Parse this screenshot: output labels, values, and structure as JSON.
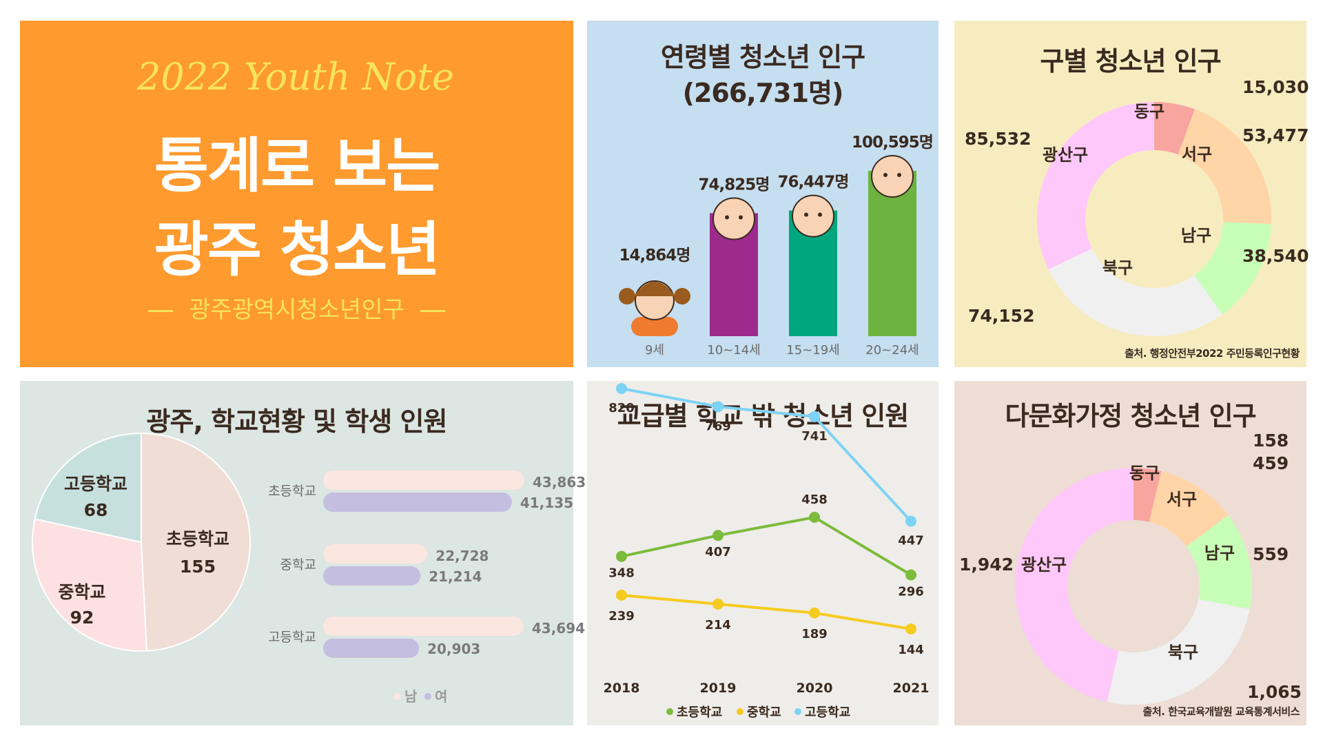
{
  "title_panel": {
    "kicker": "2022 Youth Note",
    "title_line1": "통계로 보는",
    "title_line2": "광주 청소년",
    "subtitle": "광주광역시청소년인구",
    "bg_color": "#FF9A2E",
    "kicker_color": "#F5E45C"
  },
  "source_population": "출처. 행정안전부2022 주민등록인구현황",
  "source_school": "출처. 한국교육개발원 교육통계서비스",
  "chart_data": [
    {
      "id": "age",
      "type": "bar",
      "title": "연령별 청소년 인구",
      "subtitle": "(266,731명)",
      "categories": [
        "9세",
        "10~14세",
        "15~19세",
        "20~24세"
      ],
      "values": [
        14864,
        74825,
        76447,
        100595
      ],
      "data_labels": [
        "14,864명",
        "74,825명",
        "76,447명",
        "100,595명"
      ],
      "colors": [
        "#F07A2E",
        "#9C2A8C",
        "#00A67E",
        "#6DB33F"
      ],
      "ylim": [
        0,
        110000
      ]
    },
    {
      "id": "district",
      "type": "pie",
      "title": "구별 청소년 인구",
      "donut": true,
      "labels": [
        "동구",
        "서구",
        "남구",
        "북구",
        "광산구"
      ],
      "values": [
        15030,
        53477,
        38540,
        74152,
        85532
      ],
      "data_labels": [
        "15,030",
        "53,477",
        "38,540",
        "74,152",
        "85,532"
      ],
      "colors": [
        "#F8A5A0",
        "#FFD5A8",
        "#C8FFB8",
        "#F0F0F0",
        "#FFC8FA"
      ]
    },
    {
      "id": "schools",
      "type": "pie",
      "title": "광주, 학교현황 및 학생 인원",
      "labels": [
        "초등학교",
        "중학교",
        "고등학교"
      ],
      "values": [
        155,
        92,
        68
      ],
      "colors": [
        "#F0DDD6",
        "#FCE0E2",
        "#C6E0DE"
      ]
    },
    {
      "id": "students",
      "type": "bar",
      "orientation": "horizontal",
      "categories": [
        "초등학교",
        "중학교",
        "고등학교"
      ],
      "series": [
        {
          "name": "남",
          "values": [
            43863,
            22728,
            43694
          ],
          "labels": [
            "43,863",
            "22,728",
            "43,694"
          ],
          "color": "#FCE6E0"
        },
        {
          "name": "여",
          "values": [
            41135,
            21214,
            20903
          ],
          "labels": [
            "41,135",
            "21,214",
            "20,903"
          ],
          "color": "#C4BEE0"
        }
      ],
      "xlim": [
        0,
        43863
      ]
    },
    {
      "id": "out_of_school",
      "type": "line",
      "title": "교급별 학교 밖 청소년 인원",
      "x": [
        "2018",
        "2019",
        "2020",
        "2021"
      ],
      "series": [
        {
          "name": "초등학교",
          "values": [
            348,
            407,
            458,
            296
          ],
          "color": "#7CBB3C"
        },
        {
          "name": "중학교",
          "values": [
            239,
            214,
            189,
            144
          ],
          "color": "#F5CB1F"
        },
        {
          "name": "고등학교",
          "values": [
            820,
            769,
            741,
            447
          ],
          "color": "#7DD3F5"
        }
      ]
    },
    {
      "id": "multicultural",
      "type": "pie",
      "title": "다문화가정 청소년 인구",
      "donut": true,
      "labels": [
        "동구",
        "서구",
        "남구",
        "북구",
        "광산구"
      ],
      "values": [
        158,
        459,
        559,
        1065,
        1942
      ],
      "data_labels": [
        "158",
        "459",
        "559",
        "1,065",
        "1,942"
      ],
      "colors": [
        "#F8A5A0",
        "#FFD5A8",
        "#C8FFB8",
        "#F0F0F0",
        "#FFC8FA"
      ]
    }
  ]
}
